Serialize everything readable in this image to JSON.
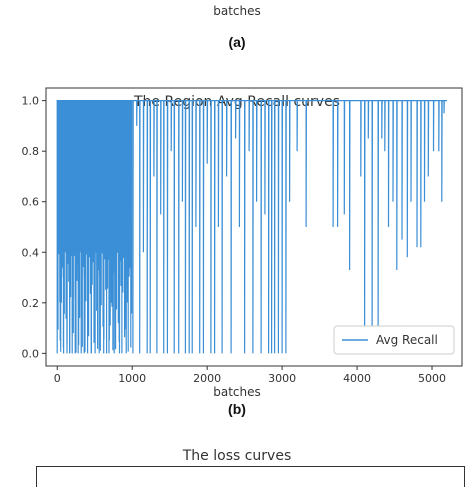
{
  "top_panel": {
    "xlabel": "batches",
    "panel_label": "(a)"
  },
  "bottom_panel": {
    "panel_label": "(b)",
    "next_title": "The loss curves"
  },
  "chart_data": {
    "type": "line",
    "title": "The Region Avg Recall curves",
    "xlabel": "batches",
    "ylabel": "",
    "xlim": [
      -150,
      5400
    ],
    "ylim": [
      -0.05,
      1.05
    ],
    "xticks": [
      0,
      1000,
      2000,
      3000,
      4000,
      5000
    ],
    "yticks": [
      0.0,
      0.2,
      0.4,
      0.6,
      0.8,
      1.0
    ],
    "xtick_labels": [
      "0",
      "1000",
      "2000",
      "3000",
      "4000",
      "5000"
    ],
    "ytick_labels": [
      "0.0",
      "0.2",
      "0.4",
      "0.6",
      "0.8",
      "1.0"
    ],
    "grid": false,
    "legend_position": "bottom-right",
    "series": [
      {
        "name": "Avg Recall",
        "color": "#3b8fd6",
        "drops": [
          [
            5,
            0.3
          ],
          [
            20,
            0.5
          ],
          [
            40,
            0.05
          ],
          [
            55,
            0.2
          ],
          [
            70,
            0.6
          ],
          [
            85,
            0.0
          ],
          [
            100,
            0.4
          ],
          [
            115,
            0.7
          ],
          [
            130,
            0.0
          ],
          [
            150,
            0.85
          ],
          [
            165,
            0.0
          ],
          [
            185,
            0.5
          ],
          [
            200,
            0.0
          ],
          [
            220,
            0.75
          ],
          [
            240,
            0.0
          ],
          [
            260,
            0.3
          ],
          [
            280,
            0.0
          ],
          [
            300,
            0.9
          ],
          [
            320,
            0.0
          ],
          [
            340,
            0.6
          ],
          [
            360,
            0.0
          ],
          [
            385,
            0.8
          ],
          [
            405,
            0.0
          ],
          [
            430,
            0.45
          ],
          [
            455,
            0.0
          ],
          [
            480,
            0.7
          ],
          [
            505,
            0.0
          ],
          [
            530,
            0.9
          ],
          [
            560,
            0.0
          ],
          [
            590,
            0.55
          ],
          [
            620,
            0.0
          ],
          [
            650,
            0.85
          ],
          [
            690,
            0.0
          ],
          [
            720,
            0.2
          ],
          [
            760,
            0.0
          ],
          [
            790,
            0.6
          ],
          [
            830,
            0.0
          ],
          [
            880,
            0.75
          ],
          [
            920,
            0.0
          ],
          [
            960,
            0.5
          ],
          [
            1010,
            0.0
          ],
          [
            1060,
            0.9
          ],
          [
            1100,
            0.0
          ],
          [
            1150,
            0.4
          ],
          [
            1200,
            0.0
          ],
          [
            1240,
            0.0
          ],
          [
            1290,
            0.7
          ],
          [
            1330,
            0.0
          ],
          [
            1380,
            0.55
          ],
          [
            1420,
            0.0
          ],
          [
            1470,
            0.0
          ],
          [
            1520,
            0.8
          ],
          [
            1560,
            0.0
          ],
          [
            1620,
            0.0
          ],
          [
            1670,
            0.6
          ],
          [
            1710,
            0.0
          ],
          [
            1760,
            0.0
          ],
          [
            1800,
            0.0
          ],
          [
            1850,
            0.5
          ],
          [
            1900,
            0.0
          ],
          [
            1950,
            0.0
          ],
          [
            2000,
            0.75
          ],
          [
            2050,
            0.0
          ],
          [
            2100,
            0.0
          ],
          [
            2150,
            0.5
          ],
          [
            2200,
            0.0
          ],
          [
            2260,
            0.7
          ],
          [
            2320,
            0.0
          ],
          [
            2380,
            0.85
          ],
          [
            2430,
            0.5
          ],
          [
            2500,
            0.0
          ],
          [
            2560,
            0.8
          ],
          [
            2610,
            0.0
          ],
          [
            2660,
            0.6
          ],
          [
            2720,
            0.0
          ],
          [
            2770,
            0.55
          ],
          [
            2820,
            0.0
          ],
          [
            2860,
            0.0
          ],
          [
            2900,
            0.0
          ],
          [
            2950,
            0.0
          ],
          [
            3000,
            0.0
          ],
          [
            3050,
            0.0
          ],
          [
            3100,
            0.6
          ],
          [
            3200,
            0.8
          ],
          [
            3320,
            0.5
          ],
          [
            3680,
            0.5
          ],
          [
            3740,
            0.5
          ],
          [
            3830,
            0.55
          ],
          [
            3900,
            0.33
          ],
          [
            4050,
            0.7
          ],
          [
            4100,
            0.0
          ],
          [
            4150,
            0.85
          ],
          [
            4200,
            0.0
          ],
          [
            4280,
            0.0
          ],
          [
            4330,
            0.85
          ],
          [
            4370,
            0.8
          ],
          [
            4420,
            0.5
          ],
          [
            4480,
            0.6
          ],
          [
            4530,
            0.33
          ],
          [
            4600,
            0.45
          ],
          [
            4670,
            0.38
          ],
          [
            4720,
            0.6
          ],
          [
            4800,
            0.42
          ],
          [
            4850,
            0.42
          ],
          [
            4900,
            0.6
          ],
          [
            4950,
            0.7
          ],
          [
            5020,
            0.8
          ],
          [
            5090,
            0.8
          ],
          [
            5130,
            0.6
          ],
          [
            5160,
            0.95
          ]
        ],
        "baseline": 1.0,
        "x_end": 5200
      }
    ]
  }
}
